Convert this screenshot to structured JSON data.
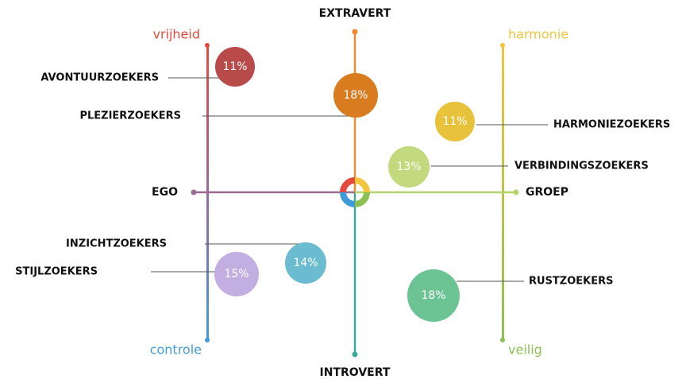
{
  "axes": {
    "top": "EXTRAVERT",
    "bottom": "INTROVERT",
    "left": "EGO",
    "right": "GROEP"
  },
  "corners": {
    "top_left": "vrijheid",
    "top_right": "harmonie",
    "bottom_left": "controle",
    "bottom_right": "veilig"
  },
  "segments": [
    {
      "name": "AVONTUURZOEKERS",
      "label": "11%"
    },
    {
      "name": "PLEZIERZOEKERS",
      "label": "18%"
    },
    {
      "name": "HARMONIEZOEKERS",
      "label": "11%"
    },
    {
      "name": "VERBINDINGSZOEKERS",
      "label": "13%"
    },
    {
      "name": "INZICHTZOEKERS",
      "label": "14%"
    },
    {
      "name": "STIJLZOEKERS",
      "label": "15%"
    },
    {
      "name": "RUSTZOEKERS",
      "label": "18%"
    }
  ]
}
